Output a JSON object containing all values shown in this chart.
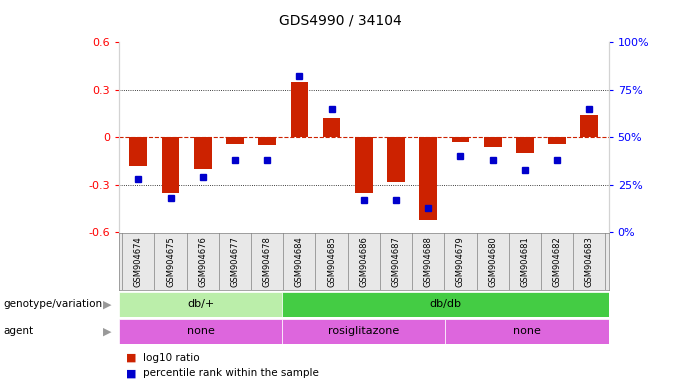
{
  "title": "GDS4990 / 34104",
  "samples": [
    "GSM904674",
    "GSM904675",
    "GSM904676",
    "GSM904677",
    "GSM904678",
    "GSM904684",
    "GSM904685",
    "GSM904686",
    "GSM904687",
    "GSM904688",
    "GSM904679",
    "GSM904680",
    "GSM904681",
    "GSM904682",
    "GSM904683"
  ],
  "log10_ratio": [
    -0.18,
    -0.35,
    -0.2,
    -0.04,
    -0.05,
    0.35,
    0.12,
    -0.35,
    -0.28,
    -0.52,
    -0.03,
    -0.06,
    -0.1,
    -0.04,
    0.14
  ],
  "percentile": [
    28,
    18,
    29,
    38,
    38,
    82,
    65,
    17,
    17,
    13,
    40,
    38,
    33,
    38,
    65
  ],
  "ylim_left": [
    -0.6,
    0.6
  ],
  "yticks_left": [
    -0.6,
    -0.3,
    0,
    0.3,
    0.6
  ],
  "ytick_labels_left": [
    "-0.6",
    "-0.3",
    "0",
    "0.3",
    "0.6"
  ],
  "yticks_right": [
    0,
    25,
    50,
    75,
    100
  ],
  "ytick_labels_right": [
    "0%",
    "25%",
    "50%",
    "75%",
    "100%"
  ],
  "bar_color": "#cc2200",
  "dot_color": "#0000cc",
  "zero_line_color": "#cc2200",
  "genotype_groups": [
    {
      "label": "db/+",
      "start": 0,
      "end": 5,
      "color": "#bbeeaa"
    },
    {
      "label": "db/db",
      "start": 5,
      "end": 15,
      "color": "#44cc44"
    }
  ],
  "agent_sections": [
    {
      "label": "none",
      "start": 0,
      "end": 5
    },
    {
      "label": "rosiglitazone",
      "start": 5,
      "end": 10
    },
    {
      "label": "none",
      "start": 10,
      "end": 15
    }
  ],
  "agent_color": "#dd66dd",
  "legend_bar_color": "#cc2200",
  "legend_dot_color": "#0000cc",
  "geno_label": "genotype/variation",
  "agent_label": "agent",
  "legend_line1": "log10 ratio",
  "legend_line2": "percentile rank within the sample"
}
